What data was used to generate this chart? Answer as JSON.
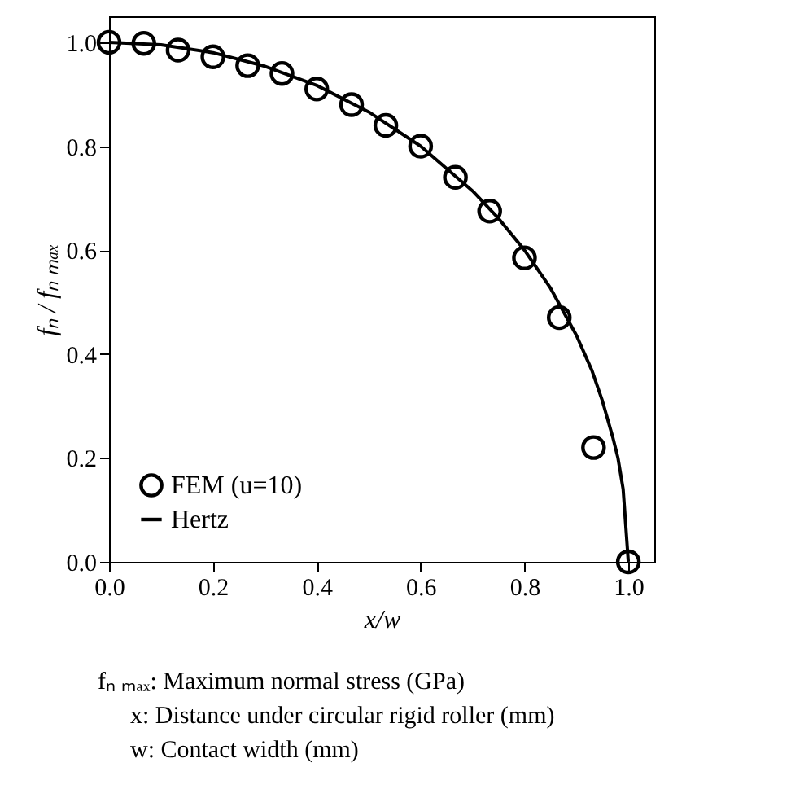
{
  "chart_data": {
    "type": "scatter",
    "xlabel": "x/w",
    "ylabel": "fₙ / fₙ ₘₐₓ",
    "xlim": [
      0,
      1.05
    ],
    "ylim": [
      0,
      1.05
    ],
    "xticks": [
      {
        "value": 0,
        "label": "0.0"
      },
      0.2,
      0.4,
      0.6,
      0.8,
      {
        "value": 1,
        "label": "1.0"
      }
    ],
    "yticks": [
      {
        "value": 0,
        "label": "0.0"
      },
      0.2,
      0.4,
      0.6,
      0.8,
      {
        "value": 1,
        "label": "1.0"
      }
    ],
    "grid": false,
    "legend": "bottom left",
    "series": [
      {
        "name": "FEM (u=10)",
        "type": "scatter",
        "marker": "circle",
        "color": "#000000",
        "x": [
          0,
          0.067,
          0.133,
          0.2,
          0.267,
          0.333,
          0.4,
          0.467,
          0.533,
          0.6,
          0.667,
          0.733,
          0.8,
          0.867,
          0.933,
          1.0
        ],
        "values": [
          1.0,
          0.998,
          0.985,
          0.972,
          0.955,
          0.94,
          0.91,
          0.88,
          0.84,
          0.8,
          0.74,
          0.675,
          0.585,
          0.47,
          0.22,
          0.0
        ]
      },
      {
        "name": "Hertz",
        "type": "line",
        "marker": "none",
        "line_style": "solid",
        "color": "#000000",
        "x": [
          0,
          0.1,
          0.2,
          0.3,
          0.4,
          0.5,
          0.6,
          0.7,
          0.75,
          0.8,
          0.85,
          0.9,
          0.93,
          0.95,
          0.97,
          0.98,
          0.99,
          1.0
        ],
        "values": [
          1.0,
          0.995,
          0.98,
          0.954,
          0.917,
          0.866,
          0.8,
          0.714,
          0.661,
          0.6,
          0.527,
          0.436,
          0.368,
          0.31,
          0.24,
          0.2,
          0.14,
          0.0
        ]
      }
    ],
    "annotations": [
      "fₙ ₘₐₓ: Maximum normal stress (GPa)",
      "x: Distance under circular rigid roller (mm)",
      "w: Contact width (mm)"
    ]
  }
}
